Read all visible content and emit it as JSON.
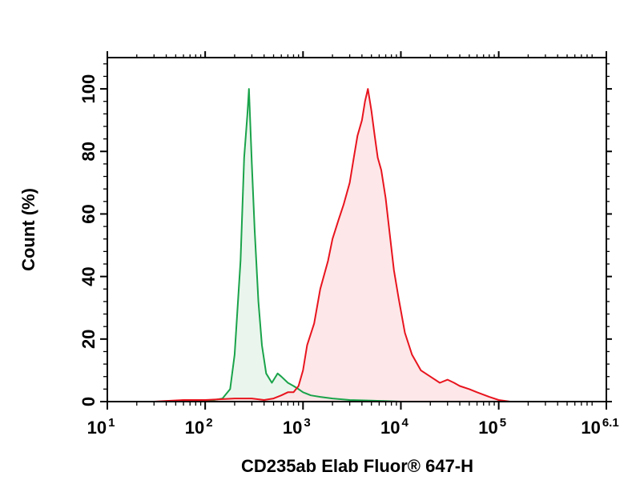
{
  "chart_data": {
    "type": "area",
    "title": "",
    "xlabel": "CD235ab Elab Fluor® 647-H",
    "ylabel": "Count (%)",
    "x_scale": "log",
    "xlim": [
      10,
      1258925
    ],
    "ylim": [
      0,
      110
    ],
    "x_ticks": [
      {
        "value": 10,
        "base": "10",
        "exp": "1"
      },
      {
        "value": 100,
        "base": "10",
        "exp": "2"
      },
      {
        "value": 1000,
        "base": "10",
        "exp": "3"
      },
      {
        "value": 10000,
        "base": "10",
        "exp": "4"
      },
      {
        "value": 100000,
        "base": "10",
        "exp": "5"
      },
      {
        "value": 1258925,
        "base": "10",
        "exp": "6.1"
      }
    ],
    "y_ticks": [
      0,
      20,
      40,
      60,
      80,
      100
    ],
    "grid": false,
    "legend": "none",
    "series": [
      {
        "color": "#1aa34a",
        "fill": "#e6f5ea",
        "x": [
          100,
          150,
          180,
          200,
          230,
          250,
          270,
          280,
          290,
          300,
          320,
          350,
          380,
          420,
          480,
          550,
          600,
          700,
          800,
          900,
          1000,
          1200,
          1500,
          2000,
          3000,
          5000,
          10000
        ],
        "y": [
          0,
          1,
          4,
          15,
          45,
          78,
          92,
          100,
          88,
          76,
          55,
          32,
          18,
          9,
          6,
          9,
          8,
          6,
          5,
          4,
          3,
          2,
          1.5,
          1,
          0.5,
          0.3,
          0
        ]
      },
      {
        "color": "#e8141e",
        "fill": "#fde3e4",
        "x": [
          30,
          60,
          100,
          200,
          300,
          400,
          500,
          600,
          700,
          800,
          900,
          1000,
          1100,
          1300,
          1500,
          1800,
          2000,
          2300,
          2600,
          3000,
          3300,
          3600,
          4000,
          4300,
          4600,
          5000,
          5400,
          5800,
          6300,
          7000,
          7800,
          8500,
          9500,
          11000,
          13000,
          16000,
          20000,
          25000,
          30000,
          35000,
          40000,
          50000,
          60000,
          80000,
          100000,
          130000
        ],
        "y": [
          0,
          0.5,
          0.5,
          1,
          1,
          0.5,
          1,
          2,
          3,
          3,
          5,
          10,
          18,
          25,
          36,
          45,
          52,
          58,
          63,
          70,
          78,
          85,
          90,
          96,
          100,
          93,
          85,
          78,
          74,
          65,
          52,
          42,
          33,
          22,
          15,
          10,
          8,
          6,
          7,
          6,
          5,
          4,
          3,
          1.5,
          0.5,
          0
        ]
      }
    ]
  }
}
